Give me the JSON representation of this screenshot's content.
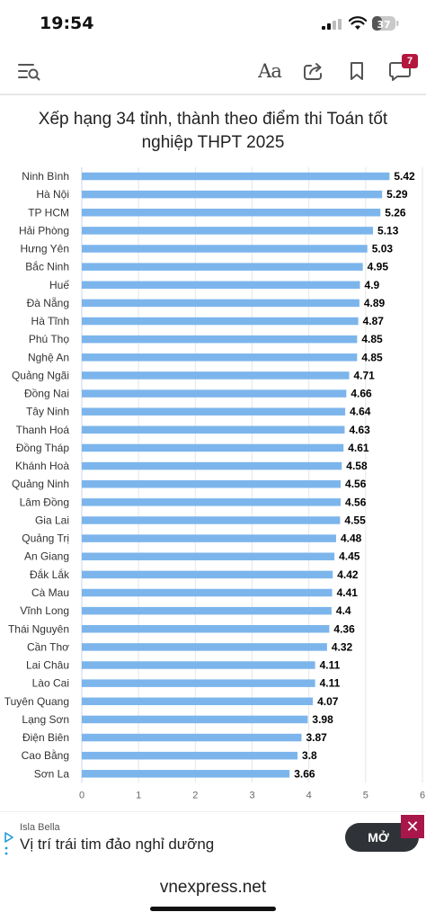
{
  "status_bar": {
    "time": "19:54",
    "battery": "37"
  },
  "toolbar": {
    "font_size_label": "Aa",
    "notification_count": "7"
  },
  "chart_data": {
    "type": "bar",
    "orientation": "horizontal",
    "title": "Xếp hạng 34 tỉnh, thành theo điểm thi Toán tốt nghiệp THPT 2025",
    "categories": [
      "Ninh Bình",
      "Hà Nội",
      "TP HCM",
      "Hải Phòng",
      "Hưng Yên",
      "Bắc Ninh",
      "Huế",
      "Đà Nẵng",
      "Hà Tĩnh",
      "Phú Thọ",
      "Nghệ An",
      "Quảng Ngãi",
      "Đồng Nai",
      "Tây Ninh",
      "Thanh Hoá",
      "Đồng Tháp",
      "Khánh Hoà",
      "Quảng Ninh",
      "Lâm Đồng",
      "Gia Lai",
      "Quảng Trị",
      "An Giang",
      "Đắk Lắk",
      "Cà Mau",
      "Vĩnh Long",
      "Thái Nguyên",
      "Cần Thơ",
      "Lai Châu",
      "Lào Cai",
      "Tuyên Quang",
      "Lạng Sơn",
      "Điện Biên",
      "Cao Bằng",
      "Sơn La"
    ],
    "values": [
      5.42,
      5.29,
      5.26,
      5.13,
      5.03,
      4.95,
      4.9,
      4.89,
      4.87,
      4.85,
      4.85,
      4.71,
      4.66,
      4.64,
      4.63,
      4.61,
      4.58,
      4.56,
      4.56,
      4.55,
      4.48,
      4.45,
      4.42,
      4.41,
      4.4,
      4.36,
      4.32,
      4.11,
      4.11,
      4.07,
      3.98,
      3.87,
      3.8,
      3.66
    ],
    "value_labels": [
      "5.42",
      "5.29",
      "5.26",
      "5.13",
      "5.03",
      "4.95",
      "4.9",
      "4.89",
      "4.87",
      "4.85",
      "4.85",
      "4.71",
      "4.66",
      "4.64",
      "4.63",
      "4.61",
      "4.58",
      "4.56",
      "4.56",
      "4.55",
      "4.48",
      "4.45",
      "4.42",
      "4.41",
      "4.4",
      "4.36",
      "4.32",
      "4.11",
      "4.11",
      "4.07",
      "3.98",
      "3.87",
      "3.8",
      "3.66"
    ],
    "xlim": [
      0,
      6
    ],
    "x_ticks": [
      "0",
      "1",
      "2",
      "3",
      "4",
      "5",
      "6"
    ],
    "grid": true,
    "bar_color": "#7cb5ec"
  },
  "ad": {
    "brand": "Isla Bella",
    "headline": "Vị trí trái tim đảo nghỉ dưỡng",
    "cta": "MỞ",
    "close": "✕"
  },
  "url_bar": {
    "domain": "vnexpress.net"
  }
}
